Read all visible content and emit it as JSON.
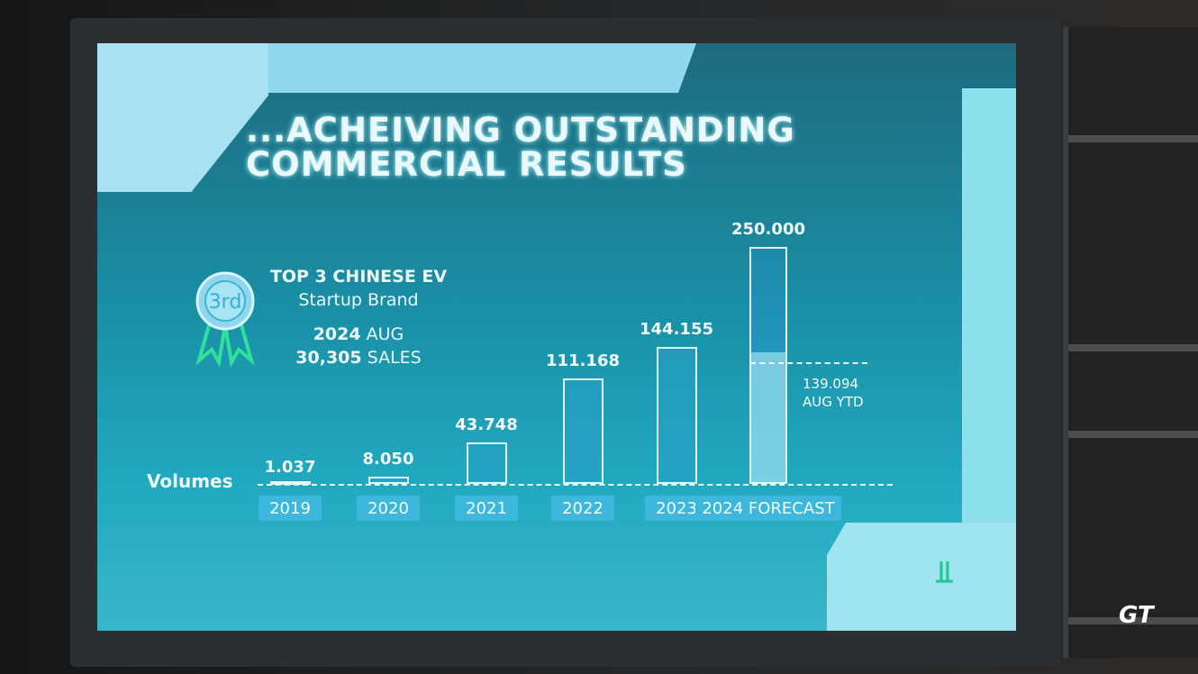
{
  "slide_title_line1": "...ACHEIVING OUTSTANDING",
  "slide_title_line2": "COMMERCIAL RESULTS",
  "award": {
    "badge": "3rd",
    "heading": "TOP 3 CHINESE EV",
    "sub": "Startup Brand",
    "year_bold": "2024",
    "year_rest": "AUG",
    "sales_bold": "30,305",
    "sales_rest": "SALES"
  },
  "chart_data": {
    "type": "bar",
    "ylabel": "Volumes",
    "categories": [
      "2019",
      "2020",
      "2021",
      "2022",
      "2023",
      "2024 FORECAST"
    ],
    "values": [
      1037,
      8050,
      43748,
      111168,
      144155,
      250000
    ],
    "value_labels": [
      "1.037",
      "8.050",
      "43.748",
      "111.168",
      "144.155",
      "250.000"
    ],
    "annotation": {
      "value": 139094,
      "label": "139.094",
      "text_bold": "AUG",
      "text_rest": "YTD"
    },
    "ylim": [
      0,
      250000
    ],
    "grid": false,
    "colors": {
      "bar_fill": "#28a0c8",
      "bar_edge": "#e4f8ff",
      "label_bg": "#3eb7dc"
    }
  },
  "watermark": "GT MAG"
}
